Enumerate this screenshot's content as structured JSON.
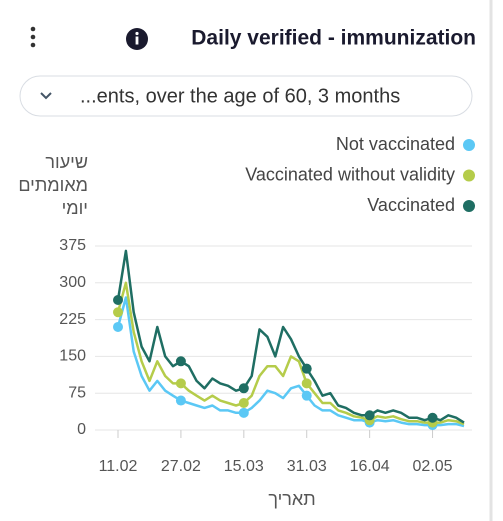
{
  "header": {
    "title": "Daily verified - immunization",
    "dropdown": "...ents, over the age of 60, 3 months"
  },
  "chart_data": {
    "type": "line",
    "y_label": [
      "שיעור",
      "מאומתים",
      "יומי"
    ],
    "x_label": "תאריך",
    "categories": [
      "11.02",
      null,
      null,
      null,
      null,
      null,
      null,
      null,
      "27.02",
      null,
      null,
      null,
      null,
      null,
      null,
      null,
      "15.03",
      null,
      null,
      null,
      null,
      null,
      null,
      null,
      "31.03",
      null,
      null,
      null,
      null,
      null,
      null,
      null,
      "16.04",
      null,
      null,
      null,
      null,
      null,
      null,
      null,
      "02.05",
      null,
      null,
      null,
      null
    ],
    "series": [
      {
        "name": "Not vaccinated",
        "color": "#5bc8f5",
        "values": [
          210,
          270,
          160,
          110,
          80,
          100,
          80,
          70,
          60,
          55,
          50,
          45,
          50,
          40,
          40,
          35,
          35,
          45,
          60,
          80,
          75,
          65,
          85,
          90,
          70,
          50,
          40,
          40,
          30,
          25,
          20,
          20,
          15,
          20,
          18,
          20,
          15,
          12,
          12,
          10,
          10,
          10,
          12,
          12,
          8
        ]
      },
      {
        "name": "Vaccinated without validity",
        "color": "#b5cc4a",
        "values": [
          240,
          300,
          200,
          140,
          100,
          140,
          110,
          95,
          95,
          80,
          70,
          60,
          70,
          60,
          55,
          50,
          55,
          70,
          110,
          130,
          130,
          110,
          150,
          140,
          95,
          75,
          55,
          55,
          40,
          35,
          28,
          25,
          20,
          28,
          25,
          28,
          22,
          18,
          18,
          15,
          15,
          15,
          20,
          18,
          12
        ]
      },
      {
        "name": "Vaccinated",
        "color": "#1f6e63",
        "values": [
          265,
          365,
          240,
          170,
          140,
          210,
          150,
          130,
          140,
          130,
          100,
          85,
          105,
          95,
          90,
          80,
          85,
          110,
          205,
          190,
          150,
          210,
          185,
          150,
          125,
          100,
          70,
          75,
          50,
          45,
          35,
          30,
          30,
          40,
          35,
          40,
          35,
          25,
          25,
          20,
          25,
          20,
          30,
          25,
          15
        ]
      }
    ],
    "ylim": [
      0,
      390
    ],
    "yticks": [
      0,
      75,
      150,
      225,
      300,
      375
    ],
    "grid": true
  }
}
